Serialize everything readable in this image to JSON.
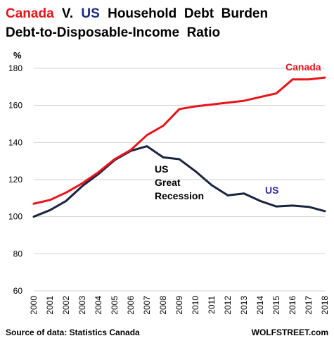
{
  "chart_data": {
    "type": "line",
    "title_part1": "Canada",
    "title_part2": "V.",
    "title_part3": "US",
    "title_part4": "Household  Debt  Burden",
    "subtitle": "Debt-to-Disposable-Income  Ratio",
    "ylabel": "%",
    "ylim": [
      60,
      180
    ],
    "yticks": [
      60,
      80,
      100,
      120,
      140,
      160,
      180
    ],
    "x": [
      2000,
      2001,
      2002,
      2003,
      2004,
      2005,
      2006,
      2007,
      2008,
      2009,
      2010,
      2011,
      2012,
      2013,
      2014,
      2015,
      2016,
      2017,
      2018
    ],
    "grid": true,
    "series": [
      {
        "name": "Canada",
        "color": "#e8141c",
        "values": [
          107,
          109,
          113,
          118,
          124,
          131,
          136,
          144,
          149,
          158,
          159.5,
          160.5,
          161.5,
          162.5,
          164.5,
          166.5,
          174,
          174,
          175
        ]
      },
      {
        "name": "US",
        "color": "#1a2340",
        "values": [
          100,
          103.5,
          108.5,
          116.5,
          123,
          130.5,
          135.5,
          138,
          132,
          131,
          124.5,
          117,
          111.5,
          112.5,
          108.5,
          105.5,
          106,
          105.3,
          103
        ]
      }
    ],
    "annotations": {
      "canada_label": "Canada",
      "us_label": "US",
      "recession_line1": "US",
      "recession_line2": "Great",
      "recession_line3": "Recession"
    },
    "source": "Source of data: Statistics Canada",
    "credit": "WOLFSTREET.com",
    "colors": {
      "canada": "#e8141c",
      "us_title": "#1d2a7c",
      "us_line": "#1a2340",
      "us_label": "#2b2f9e"
    }
  }
}
